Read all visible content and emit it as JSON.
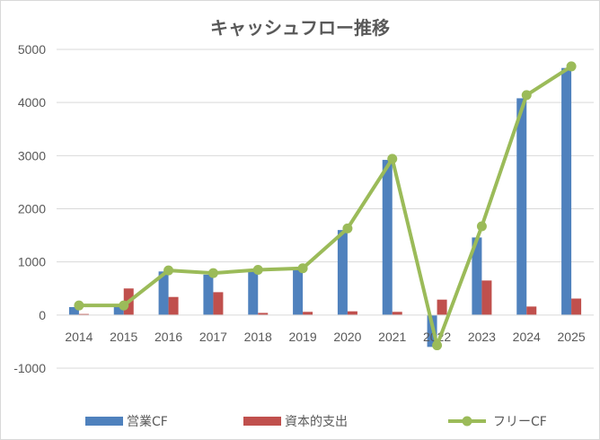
{
  "chart_data": {
    "type": "bar",
    "title": "キャッシュフロー推移",
    "categories": [
      "2014",
      "2015",
      "2016",
      "2017",
      "2018",
      "2019",
      "2020",
      "2021",
      "2022",
      "2023",
      "2024",
      "2025"
    ],
    "series": [
      {
        "name": "営業CF",
        "type": "bar",
        "color": "#4f81bd",
        "values": [
          150,
          150,
          820,
          760,
          820,
          860,
          1600,
          2920,
          -600,
          1460,
          4080,
          4650
        ]
      },
      {
        "name": "資本的支出",
        "type": "bar",
        "color": "#c0504d",
        "values": [
          20,
          500,
          340,
          430,
          40,
          60,
          70,
          60,
          290,
          650,
          160,
          310
        ]
      },
      {
        "name": "フリーCF",
        "type": "line",
        "color": "#9bbb59",
        "values": [
          180,
          180,
          840,
          790,
          850,
          880,
          1630,
          2940,
          -570,
          1670,
          4140,
          4680
        ]
      }
    ],
    "yticks": [
      -1000,
      0,
      1000,
      2000,
      3000,
      4000,
      5000
    ],
    "ylim": [
      -1000,
      5000
    ],
    "xlabel": "",
    "ylabel": "",
    "grid": true,
    "legend": "bottom"
  }
}
